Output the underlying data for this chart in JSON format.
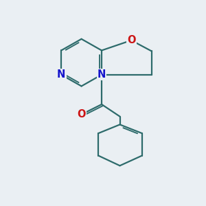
{
  "bg_color": "#eaeff3",
  "bond_color": "#2d6b6b",
  "N_color": "#1515cc",
  "O_color": "#cc1515",
  "bond_width": 1.6,
  "font_size": 10.5,
  "xlim": [
    0,
    10
  ],
  "ylim": [
    0,
    10
  ],
  "figsize": [
    3.0,
    3.0
  ],
  "dpi": 100
}
